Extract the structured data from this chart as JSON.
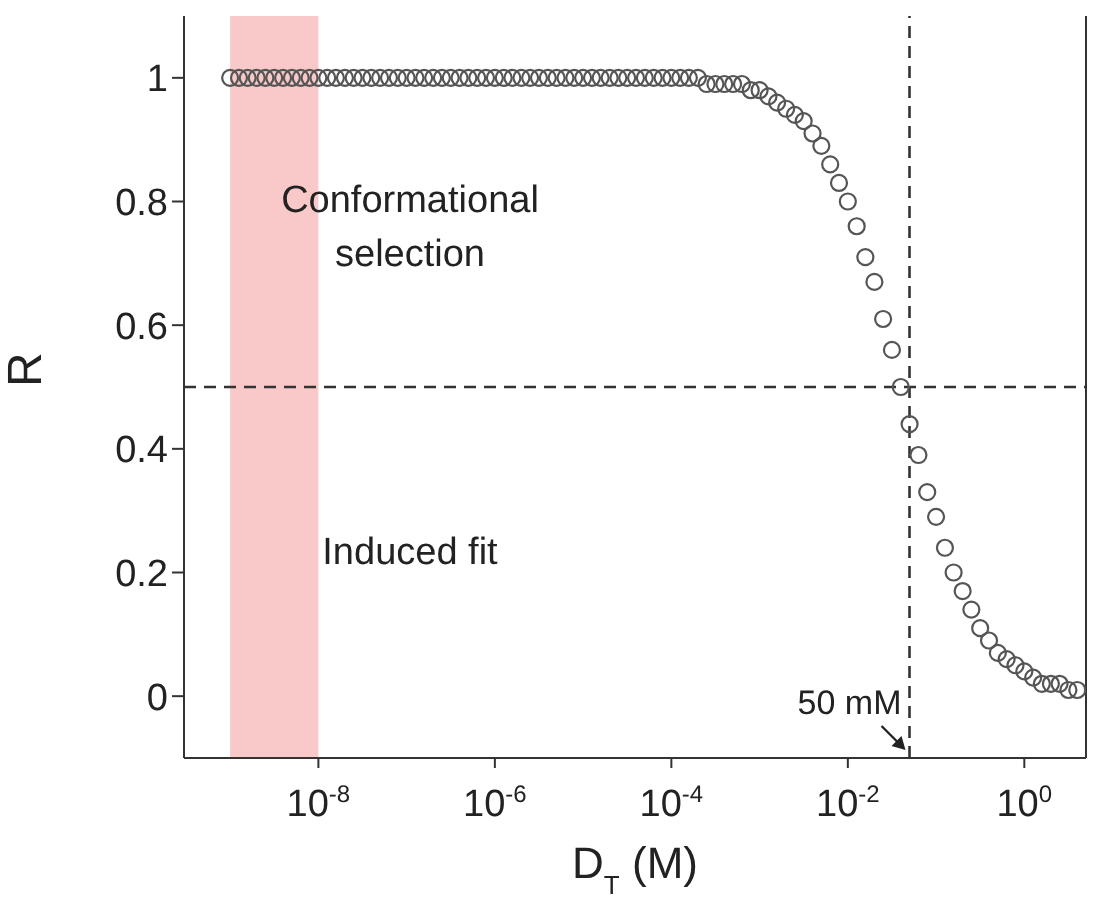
{
  "chart_data": {
    "type": "scatter",
    "xlabel": "D$_{T}$ (M)",
    "ylabel": "R",
    "log": "x",
    "xlim": [
      3e-10,
      5
    ],
    "ylim": [
      -0.1,
      1.1
    ],
    "xticks": [
      {
        "value": 1e-08,
        "label": "10$^{-8}$"
      },
      {
        "value": 1e-06,
        "label": "10$^{-6}$"
      },
      {
        "value": 0.0001,
        "label": "10$^{-4}$"
      },
      {
        "value": 0.01,
        "label": "10$^{-2}$"
      },
      {
        "value": 1,
        "label": "10$^{0}$"
      }
    ],
    "yticks": [
      0,
      0.2,
      0.4,
      0.6,
      0.8,
      1
    ],
    "marker": "circle",
    "annotations": [
      "Conformational selection",
      "Induced fit"
    ],
    "ref_lines": [
      {
        "axis": "x",
        "value": 0.05,
        "label": "50 mM",
        "color": "#333333",
        "line_style": "dashed"
      },
      {
        "axis": "y",
        "value": 0.5,
        "label": null,
        "color": "#333333",
        "line_style": "dashed"
      }
    ],
    "bands": [
      {
        "axis": "x",
        "from": 1e-09,
        "to": 1e-08,
        "label": null,
        "color": "#f9c9c9"
      }
    ],
    "series": [
      {
        "color": "#555555",
        "x": [
          1e-09,
          1.26e-09,
          1.58e-09,
          2e-09,
          2.51e-09,
          3.16e-09,
          3.98e-09,
          5.01e-09,
          6.31e-09,
          7.94e-09,
          1e-08,
          1.26e-08,
          1.58e-08,
          2e-08,
          2.51e-08,
          3.16e-08,
          3.98e-08,
          5.01e-08,
          6.31e-08,
          7.94e-08,
          1e-07,
          1.26e-07,
          1.58e-07,
          2e-07,
          2.51e-07,
          3.16e-07,
          3.98e-07,
          5.01e-07,
          6.31e-07,
          7.94e-07,
          1e-06,
          1.26e-06,
          1.58e-06,
          2e-06,
          2.51e-06,
          3.16e-06,
          3.98e-06,
          5.01e-06,
          6.31e-06,
          7.94e-06,
          1e-05,
          1.26e-05,
          1.58e-05,
          2e-05,
          2.51e-05,
          3.16e-05,
          3.98e-05,
          5.01e-05,
          6.31e-05,
          7.94e-05,
          0.0001,
          0.000126,
          0.000158,
          0.0002,
          0.000251,
          0.000316,
          0.000398,
          0.000501,
          0.000631,
          0.000794,
          0.001,
          0.00126,
          0.00158,
          0.002,
          0.00251,
          0.00316,
          0.00398,
          0.00501,
          0.00631,
          0.00794,
          0.01,
          0.0126,
          0.0158,
          0.02,
          0.0251,
          0.0316,
          0.0398,
          0.0501,
          0.0631,
          0.0794,
          0.1,
          0.126,
          0.158,
          0.2,
          0.251,
          0.316,
          0.398,
          0.501,
          0.631,
          0.794,
          1,
          1.26,
          1.58,
          2,
          2.51,
          3.16,
          3.98
        ],
        "values": [
          1,
          1,
          1,
          1,
          1,
          1,
          1,
          1,
          1,
          1,
          1,
          1,
          1,
          1,
          1,
          1,
          1,
          1,
          1,
          1,
          1,
          1,
          1,
          1,
          1,
          1,
          1,
          1,
          1,
          1,
          1,
          1,
          1,
          1,
          1,
          1,
          1,
          1,
          1,
          1,
          1,
          1,
          1,
          1,
          1,
          1,
          1,
          1,
          1,
          1,
          1,
          1,
          1,
          1,
          0.99,
          0.99,
          0.99,
          0.99,
          0.99,
          0.98,
          0.98,
          0.97,
          0.96,
          0.95,
          0.94,
          0.93,
          0.91,
          0.89,
          0.86,
          0.83,
          0.8,
          0.76,
          0.71,
          0.67,
          0.61,
          0.56,
          0.5,
          0.44,
          0.39,
          0.33,
          0.29,
          0.24,
          0.2,
          0.17,
          0.14,
          0.11,
          0.09,
          0.07,
          0.06,
          0.05,
          0.04,
          0.03,
          0.02,
          0.02,
          0.02,
          0.01,
          0.01
        ]
      }
    ]
  }
}
